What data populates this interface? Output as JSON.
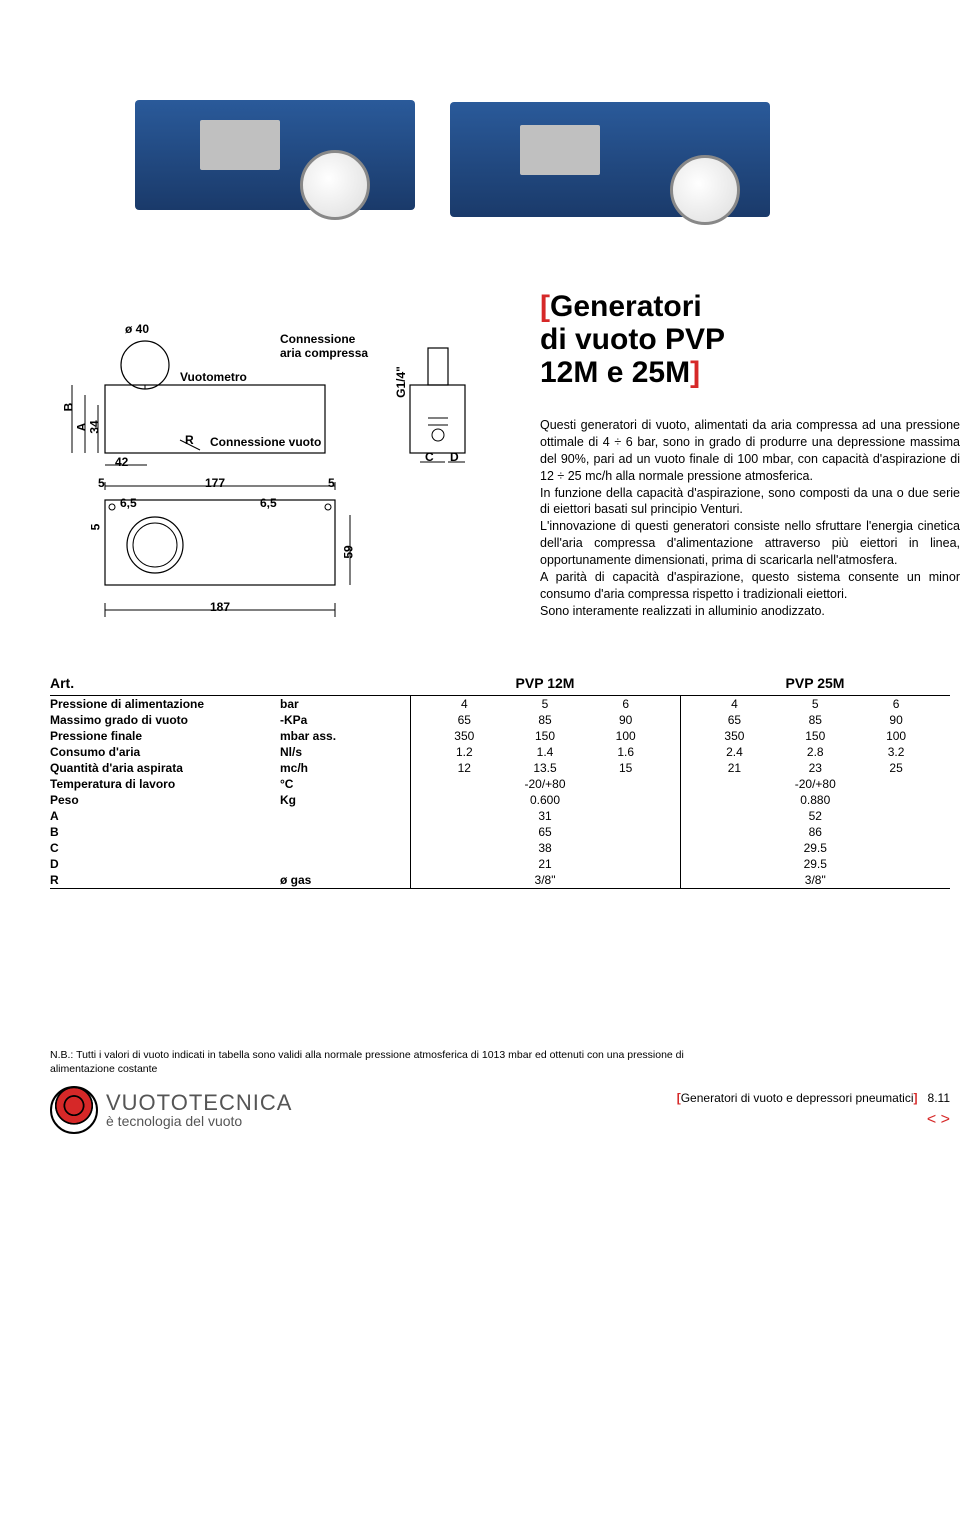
{
  "title": {
    "line1": "Generatori",
    "line2": "di vuoto PVP",
    "line3": "12M e 25M"
  },
  "diagram_labels": {
    "phi40": "ø 40",
    "vuotometro": "Vuotometro",
    "conn_aria": "Connessione\naria compressa",
    "conn_vuoto": "Connessione vuoto",
    "g14": "G1/4\"",
    "B": "B",
    "A": "A",
    "n34": "34",
    "R": "R",
    "n42": "42",
    "n5a": "5",
    "n177": "177",
    "n5b": "5",
    "n65a": "6,5",
    "n65b": "6,5",
    "n5c": "5",
    "n187": "187",
    "n59": "59",
    "C": "C",
    "D": "D"
  },
  "description": {
    "p1": "Questi generatori di vuoto, alimentati da aria compressa ad una pressione ottimale di 4 ÷ 6 bar, sono in grado di produrre una depressione massima del 90%, pari ad un vuoto finale di 100 mbar, con capacità d'aspirazione di 12 ÷ 25 mc/h alla normale pressione atmosferica.",
    "p2": "In funzione della capacità d'aspirazione, sono composti da una o due serie di eiettori basati sul principio Venturi.",
    "p3": "L'innovazione di questi generatori consiste nello sfruttare l'energia cinetica dell'aria compressa d'alimentazione attraverso più eiettori in linea, opportunamente dimensionati, prima di scaricarla nell'atmosfera.",
    "p4": "A parità di capacità d'aspirazione, questo sistema consente un minor consumo d'aria compressa rispetto i tradizionali eiettori.",
    "p5": "Sono interamente realizzati in alluminio anodizzato."
  },
  "table": {
    "header": {
      "art": "Art.",
      "col1": "PVP 12M",
      "col2": "PVP 25M"
    },
    "rows": [
      {
        "label": "Pressione di alimentazione",
        "unit": "bar",
        "c1": [
          "4",
          "5",
          "6"
        ],
        "c2": [
          "4",
          "5",
          "6"
        ]
      },
      {
        "label": "Massimo grado di vuoto",
        "unit": "-KPa",
        "c1": [
          "65",
          "85",
          "90"
        ],
        "c2": [
          "65",
          "85",
          "90"
        ]
      },
      {
        "label": "Pressione finale",
        "unit": "mbar ass.",
        "c1": [
          "350",
          "150",
          "100"
        ],
        "c2": [
          "350",
          "150",
          "100"
        ]
      },
      {
        "label": "Consumo d'aria",
        "unit": "Nl/s",
        "c1": [
          "1.2",
          "1.4",
          "1.6"
        ],
        "c2": [
          "2.4",
          "2.8",
          "3.2"
        ]
      },
      {
        "label": "Quantità d'aria aspirata",
        "unit": "mc/h",
        "c1": [
          "12",
          "13.5",
          "15"
        ],
        "c2": [
          "21",
          "23",
          "25"
        ]
      },
      {
        "label": "Temperatura di lavoro",
        "unit": "°C",
        "c1": [
          "-20/+80"
        ],
        "c2": [
          "-20/+80"
        ]
      },
      {
        "label": "Peso",
        "unit": "Kg",
        "c1": [
          "0.600"
        ],
        "c2": [
          "0.880"
        ]
      },
      {
        "label": "A",
        "unit": "",
        "c1": [
          "31"
        ],
        "c2": [
          "52"
        ]
      },
      {
        "label": "B",
        "unit": "",
        "c1": [
          "65"
        ],
        "c2": [
          "86"
        ]
      },
      {
        "label": "C",
        "unit": "",
        "c1": [
          "38"
        ],
        "c2": [
          "29.5"
        ]
      },
      {
        "label": "D",
        "unit": "",
        "c1": [
          "21"
        ],
        "c2": [
          "29.5"
        ]
      },
      {
        "label": "R",
        "unit": "ø gas",
        "c1": [
          "3/8\""
        ],
        "c2": [
          "3/8\""
        ]
      }
    ]
  },
  "footnote": "N.B.: Tutti i valori di vuoto indicati in tabella sono validi alla normale pressione atmosferica di 1013 mbar ed ottenuti con una pressione di alimentazione costante",
  "footer": {
    "brand1": "VUOTOTECNICA",
    "brand2": "è tecnologia del vuoto",
    "section": "Generatori di vuoto e depressori pneumatici",
    "page": "8.11",
    "prev": "<",
    "next": ">"
  },
  "colors": {
    "accent": "#d62828",
    "machine_blue_top": "#2a5a9a",
    "machine_blue_bot": "#1a3a6a",
    "text": "#000000",
    "bg": "#ffffff"
  }
}
